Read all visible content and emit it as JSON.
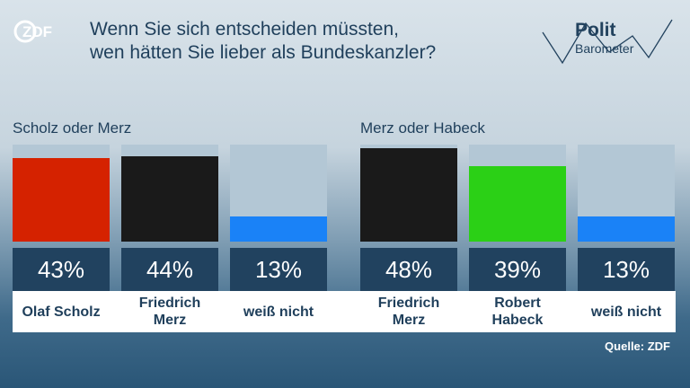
{
  "header": {
    "logo_text": "ZDF",
    "title_line1": "Wenn Sie sich entscheiden müssten,",
    "title_line2": "wen hätten Sie lieber als Bundeskanzler?",
    "brand_line1": "Polit",
    "brand_line2": "Barometer"
  },
  "source": "Quelle: ZDF",
  "colors": {
    "scholz": "#d52200",
    "merz": "#1a1a1a",
    "habeck": "#2bd016",
    "undecided": "#1a82f7",
    "track": "#b3c7d5",
    "value_box": "#21425f"
  },
  "chart_data": [
    {
      "type": "bar",
      "title": "Scholz oder Merz",
      "categories": [
        "Olaf Scholz",
        "Friedrich Merz",
        "weiß nicht"
      ],
      "values": [
        43,
        44,
        13
      ],
      "value_labels": [
        "43%",
        "44%",
        "13%"
      ],
      "colors": [
        "#d52200",
        "#1a1a1a",
        "#1a82f7"
      ],
      "ylim": [
        0,
        50
      ]
    },
    {
      "type": "bar",
      "title": "Merz oder Habeck",
      "categories": [
        "Friedrich Merz",
        "Robert Habeck",
        "weiß nicht"
      ],
      "values": [
        48,
        39,
        13
      ],
      "value_labels": [
        "48%",
        "39%",
        "13%"
      ],
      "colors": [
        "#1a1a1a",
        "#2bd016",
        "#1a82f7"
      ],
      "ylim": [
        0,
        50
      ]
    }
  ]
}
